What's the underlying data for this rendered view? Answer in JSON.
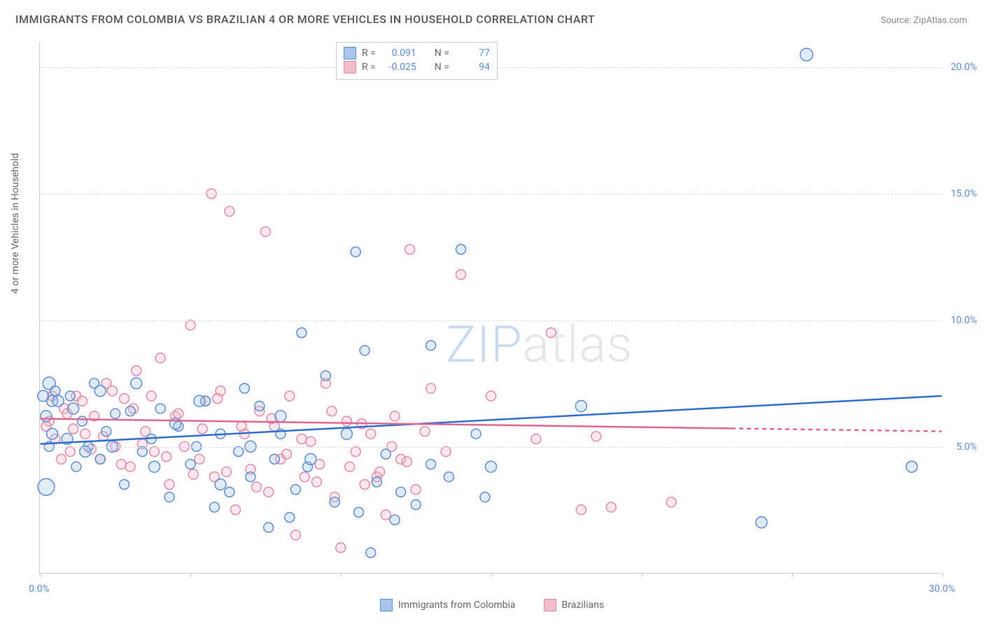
{
  "title": "IMMIGRANTS FROM COLOMBIA VS BRAZILIAN 4 OR MORE VEHICLES IN HOUSEHOLD CORRELATION CHART",
  "source_label": "Source: ZipAtlas.com",
  "y_axis_label": "4 or more Vehicles in Household",
  "watermark": {
    "part1": "ZIP",
    "part2": "atlas"
  },
  "chart": {
    "type": "scatter",
    "background_color": "#ffffff",
    "grid_color": "#dcdcdc",
    "axis_color": "#cccccc",
    "xlim": [
      0,
      30
    ],
    "ylim": [
      0,
      21
    ],
    "x_ticks": [
      0,
      5,
      10,
      15,
      20,
      25,
      30
    ],
    "x_tick_labels": {
      "0": "0.0%",
      "30": "30.0%"
    },
    "y_gridlines": [
      5,
      10,
      15,
      20
    ],
    "y_tick_labels": {
      "5": "5.0%",
      "10": "10.0%",
      "15": "15.0%",
      "20": "20.0%"
    },
    "tick_label_color": "#5b8dd6",
    "tick_label_fontsize": 14,
    "title_fontsize": 16,
    "title_color": "#555555",
    "marker_radius": 8,
    "marker_stroke_width": 1.5,
    "marker_fill_opacity": 0.35,
    "trend_line_width": 2.5,
    "series": [
      {
        "key": "colombia",
        "label": "Immigrants from Colombia",
        "color_stroke": "#5b8dd6",
        "color_fill": "#a9c5ec",
        "trend_color": "#2f6fd0",
        "trend": {
          "x1": 0,
          "y1": 5.1,
          "x2": 30,
          "y2": 7.0
        },
        "trend_solid_until_x": 30,
        "r": "0.091",
        "n": "77",
        "points": [
          [
            0.2,
            3.4,
            12
          ],
          [
            0.3,
            7.5,
            9
          ],
          [
            0.4,
            6.8,
            8
          ],
          [
            0.5,
            7.2,
            7
          ],
          [
            0.3,
            5.0,
            7
          ],
          [
            1.0,
            7.0,
            7
          ],
          [
            1.2,
            4.2,
            7
          ],
          [
            1.4,
            6.0,
            7
          ],
          [
            1.6,
            5.0,
            7
          ],
          [
            1.8,
            7.5,
            7
          ],
          [
            2.0,
            4.5,
            7
          ],
          [
            2.2,
            5.6,
            7
          ],
          [
            2.5,
            6.3,
            7
          ],
          [
            2.8,
            3.5,
            7
          ],
          [
            3.0,
            6.4,
            7
          ],
          [
            3.4,
            4.8,
            7
          ],
          [
            3.7,
            5.3,
            7
          ],
          [
            4.0,
            6.5,
            7
          ],
          [
            4.3,
            3.0,
            7
          ],
          [
            4.6,
            5.8,
            7
          ],
          [
            5.0,
            4.3,
            7
          ],
          [
            5.2,
            5.0,
            7
          ],
          [
            5.5,
            6.8,
            7
          ],
          [
            5.8,
            2.6,
            7
          ],
          [
            6.0,
            5.5,
            7
          ],
          [
            6.3,
            3.2,
            7
          ],
          [
            6.6,
            4.8,
            7
          ],
          [
            6.8,
            7.3,
            7
          ],
          [
            7.0,
            3.8,
            7
          ],
          [
            7.3,
            6.6,
            7
          ],
          [
            7.6,
            1.8,
            7
          ],
          [
            7.8,
            4.5,
            7
          ],
          [
            8.0,
            5.5,
            7
          ],
          [
            8.3,
            2.2,
            7
          ],
          [
            8.5,
            3.3,
            7
          ],
          [
            8.7,
            9.5,
            7
          ],
          [
            8.9,
            4.2,
            7
          ],
          [
            9.5,
            7.8,
            7
          ],
          [
            9.8,
            2.8,
            7
          ],
          [
            10.2,
            5.5,
            8
          ],
          [
            10.5,
            12.7,
            7
          ],
          [
            10.6,
            2.4,
            7
          ],
          [
            10.8,
            8.8,
            7
          ],
          [
            11.0,
            0.8,
            7
          ],
          [
            11.2,
            3.6,
            7
          ],
          [
            11.5,
            4.7,
            7
          ],
          [
            11.8,
            2.1,
            7
          ],
          [
            12.0,
            3.2,
            7
          ],
          [
            12.5,
            2.7,
            7
          ],
          [
            13.0,
            9.0,
            7
          ],
          [
            13.6,
            3.8,
            7
          ],
          [
            14.0,
            12.8,
            7
          ],
          [
            14.5,
            5.5,
            7
          ],
          [
            14.8,
            3.0,
            7
          ],
          [
            18.0,
            6.6,
            8
          ],
          [
            24.0,
            2.0,
            8
          ],
          [
            25.5,
            20.5,
            9
          ],
          [
            29.0,
            4.2,
            8
          ],
          [
            0.1,
            7.0,
            8
          ],
          [
            0.2,
            6.2,
            8
          ],
          [
            0.4,
            5.5,
            8
          ],
          [
            0.6,
            6.8,
            8
          ],
          [
            0.9,
            5.3,
            8
          ],
          [
            1.1,
            6.5,
            8
          ],
          [
            1.5,
            4.8,
            8
          ],
          [
            2.0,
            7.2,
            8
          ],
          [
            2.4,
            5.0,
            8
          ],
          [
            3.2,
            7.5,
            8
          ],
          [
            3.8,
            4.2,
            8
          ],
          [
            4.5,
            5.9,
            8
          ],
          [
            5.3,
            6.8,
            8
          ],
          [
            6.0,
            3.5,
            8
          ],
          [
            7.0,
            5.0,
            8
          ],
          [
            8.0,
            6.2,
            8
          ],
          [
            9.0,
            4.5,
            8
          ],
          [
            13.0,
            4.3,
            7
          ],
          [
            15.0,
            4.2,
            8
          ]
        ]
      },
      {
        "key": "brazil",
        "label": "Brazilians",
        "color_stroke": "#e68aa5",
        "color_fill": "#f5bcca",
        "trend_color": "#e06890",
        "trend": {
          "x1": 0,
          "y1": 6.1,
          "x2": 30,
          "y2": 5.6
        },
        "trend_solid_until_x": 23,
        "r": "-0.025",
        "n": "94",
        "points": [
          [
            0.3,
            6.0,
            7
          ],
          [
            0.5,
            5.3,
            7
          ],
          [
            0.8,
            6.5,
            7
          ],
          [
            1.0,
            4.8,
            7
          ],
          [
            1.2,
            7.0,
            7
          ],
          [
            1.5,
            5.5,
            7
          ],
          [
            1.8,
            6.2,
            7
          ],
          [
            2.0,
            4.5,
            7
          ],
          [
            2.2,
            7.5,
            7
          ],
          [
            2.5,
            5.0,
            7
          ],
          [
            2.8,
            6.9,
            7
          ],
          [
            3.0,
            4.2,
            7
          ],
          [
            3.2,
            8.0,
            7
          ],
          [
            3.5,
            5.6,
            7
          ],
          [
            3.8,
            4.8,
            7
          ],
          [
            4.0,
            8.5,
            7
          ],
          [
            4.3,
            3.5,
            7
          ],
          [
            4.5,
            6.2,
            7
          ],
          [
            4.8,
            5.0,
            7
          ],
          [
            5.0,
            9.8,
            7
          ],
          [
            5.3,
            4.5,
            7
          ],
          [
            5.5,
            6.8,
            7
          ],
          [
            5.7,
            15.0,
            7
          ],
          [
            5.8,
            3.8,
            7
          ],
          [
            6.0,
            7.2,
            7
          ],
          [
            6.3,
            14.3,
            7
          ],
          [
            6.5,
            2.5,
            7
          ],
          [
            6.8,
            5.5,
            7
          ],
          [
            7.0,
            4.1,
            7
          ],
          [
            7.3,
            6.4,
            7
          ],
          [
            7.5,
            13.5,
            7
          ],
          [
            7.6,
            3.2,
            7
          ],
          [
            7.8,
            5.8,
            7
          ],
          [
            8.0,
            4.5,
            7
          ],
          [
            8.3,
            7.0,
            7
          ],
          [
            8.5,
            1.5,
            7
          ],
          [
            8.8,
            3.8,
            7
          ],
          [
            9.0,
            5.2,
            7
          ],
          [
            9.3,
            4.3,
            7
          ],
          [
            9.5,
            7.5,
            7
          ],
          [
            9.8,
            3.0,
            7
          ],
          [
            10.0,
            1.0,
            7
          ],
          [
            10.2,
            6.0,
            7
          ],
          [
            10.5,
            4.8,
            7
          ],
          [
            10.8,
            3.5,
            7
          ],
          [
            11.0,
            5.5,
            7
          ],
          [
            11.3,
            4.0,
            7
          ],
          [
            11.5,
            2.3,
            7
          ],
          [
            11.8,
            6.2,
            7
          ],
          [
            12.0,
            4.5,
            7
          ],
          [
            12.3,
            12.8,
            7
          ],
          [
            12.5,
            3.3,
            7
          ],
          [
            13.0,
            7.3,
            7
          ],
          [
            13.5,
            4.8,
            7
          ],
          [
            14.0,
            11.8,
            7
          ],
          [
            15.0,
            7.0,
            7
          ],
          [
            16.5,
            5.3,
            7
          ],
          [
            17.0,
            9.5,
            7
          ],
          [
            18.0,
            2.5,
            7
          ],
          [
            18.5,
            5.4,
            7
          ],
          [
            19.0,
            2.6,
            7
          ],
          [
            21.0,
            2.8,
            7
          ],
          [
            0.2,
            5.8,
            7
          ],
          [
            0.4,
            7.0,
            7
          ],
          [
            0.7,
            4.5,
            7
          ],
          [
            0.9,
            6.3,
            7
          ],
          [
            1.1,
            5.7,
            7
          ],
          [
            1.4,
            6.8,
            7
          ],
          [
            1.7,
            4.9,
            7
          ],
          [
            2.1,
            5.4,
            7
          ],
          [
            2.4,
            7.2,
            7
          ],
          [
            2.7,
            4.3,
            7
          ],
          [
            3.1,
            6.5,
            7
          ],
          [
            3.4,
            5.1,
            7
          ],
          [
            3.7,
            7.0,
            7
          ],
          [
            4.2,
            4.6,
            7
          ],
          [
            4.6,
            6.3,
            7
          ],
          [
            5.1,
            3.9,
            7
          ],
          [
            5.4,
            5.7,
            7
          ],
          [
            5.9,
            6.9,
            7
          ],
          [
            6.2,
            4.0,
            7
          ],
          [
            6.7,
            5.8,
            7
          ],
          [
            7.2,
            3.4,
            7
          ],
          [
            7.7,
            6.1,
            7
          ],
          [
            8.2,
            4.7,
            7
          ],
          [
            8.7,
            5.3,
            7
          ],
          [
            9.2,
            3.6,
            7
          ],
          [
            9.7,
            6.4,
            7
          ],
          [
            10.3,
            4.2,
            7
          ],
          [
            10.7,
            5.9,
            7
          ],
          [
            11.2,
            3.8,
            7
          ],
          [
            11.7,
            5.0,
            7
          ],
          [
            12.2,
            4.4,
            7
          ],
          [
            12.8,
            5.6,
            7
          ]
        ]
      }
    ]
  },
  "stats_legend": {
    "r_label": "R =",
    "n_label": "N ="
  },
  "series_legend": {
    "colombia": "Immigrants from Colombia",
    "brazil": "Brazilians"
  }
}
